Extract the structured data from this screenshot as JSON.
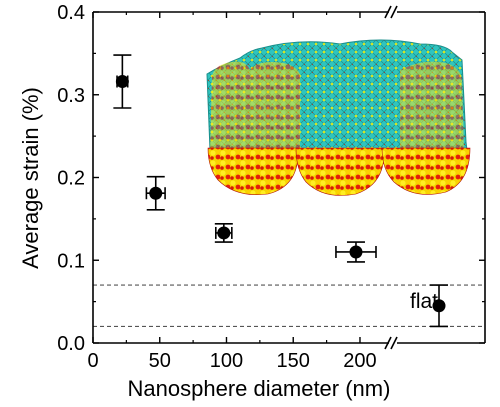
{
  "chart_data": {
    "type": "scatter",
    "title": "",
    "xlabel": "Nanosphere diameter (nm)",
    "ylabel": "Average strain (%)",
    "xlim": [
      0,
      215
    ],
    "ylim": [
      0,
      0.4
    ],
    "x_ticks": [
      0,
      50,
      100,
      150,
      200
    ],
    "y_ticks": [
      0.0,
      0.1,
      0.2,
      0.3,
      0.4
    ],
    "x_tick_labels": [
      "0",
      "50",
      "100",
      "150",
      "200"
    ],
    "y_tick_labels": [
      "0.0",
      "0.1",
      "0.2",
      "0.3",
      "0.4"
    ],
    "axis_break": true,
    "grid": false,
    "marker_color": "#000000",
    "points": [
      {
        "x": 22,
        "y": 0.316,
        "yerr": 0.032,
        "xerr": 4
      },
      {
        "x": 47,
        "y": 0.181,
        "yerr": 0.02,
        "xerr": 7
      },
      {
        "x": 98,
        "y": 0.133,
        "yerr": 0.011,
        "xerr": 6
      },
      {
        "x": 197,
        "y": 0.11,
        "yerr": 0.012,
        "xerr": 15
      }
    ],
    "flat": {
      "label": "flat",
      "y": 0.045,
      "yerr": 0.025,
      "band": [
        0.02,
        0.07
      ]
    },
    "inset_colors": {
      "membrane": "#23b3b0",
      "spheres_primary": "#ffe800",
      "spheres_secondary": "#e51d0e"
    }
  }
}
